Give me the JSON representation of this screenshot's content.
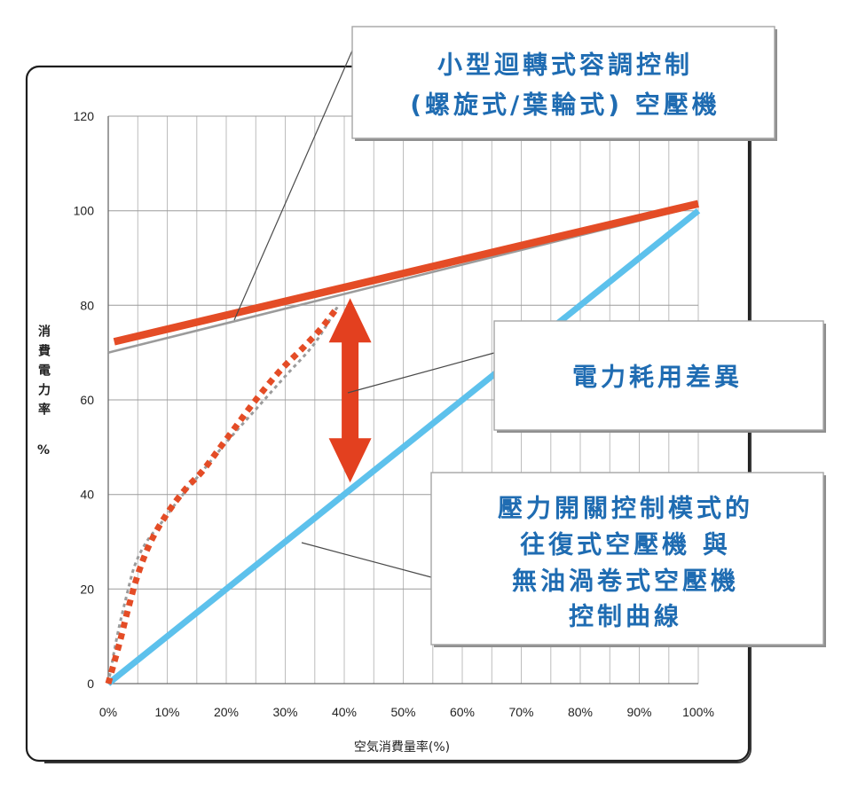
{
  "chart_data": {
    "type": "line",
    "xlabel": "空気消費量率(%)",
    "ylabel": "消費電力率 %",
    "xlim": [
      0,
      100
    ],
    "ylim": [
      0,
      120
    ],
    "xticks": [
      0,
      10,
      20,
      30,
      40,
      50,
      60,
      70,
      80,
      90,
      100
    ],
    "xtick_labels": [
      "0%",
      "10%",
      "20%",
      "30%",
      "40%",
      "50%",
      "60%",
      "70%",
      "80%",
      "90%",
      "100%"
    ],
    "yticks": [
      0,
      20,
      40,
      60,
      80,
      100,
      120
    ],
    "grid": true,
    "series": [
      {
        "dashed": false,
        "color": "#9b9b9b",
        "x": [
          0,
          100
        ],
        "y": [
          70,
          101
        ]
      },
      {
        "dashed": false,
        "color": "#e44c26",
        "x": [
          1,
          100
        ],
        "y": [
          72.3,
          101.5
        ]
      },
      {
        "dashed": false,
        "color": "#5dc1ec",
        "x": [
          0,
          100
        ],
        "y": [
          0,
          100
        ]
      },
      {
        "dashed": true,
        "color": "#9b9b9b",
        "x": [
          0,
          1.5,
          3,
          4.5,
          6.5,
          9,
          12,
          16,
          20,
          25,
          30,
          35,
          39
        ],
        "y": [
          0,
          10,
          18,
          25,
          30,
          34,
          39,
          45,
          51,
          58,
          65,
          72,
          80
        ]
      },
      {
        "dashed": true,
        "color": "#e44c26",
        "x": [
          0,
          2,
          3.2,
          5,
          7.2,
          10,
          13,
          16,
          19,
          22,
          25,
          29,
          33,
          36,
          38.5
        ],
        "y": [
          0,
          9,
          15,
          23,
          30,
          36,
          41,
          45,
          50,
          55,
          60,
          66,
          71,
          75,
          79
        ]
      }
    ],
    "difference_arrow": {
      "x": 41,
      "y_from": 42.5,
      "y_to": 81.5,
      "color": "#e3401f"
    },
    "annotation_color": "#1f6cb2",
    "annotations": [
      {
        "lines": [
          "小型迴轉式容調控制",
          "(螺旋式/葉輪式) 空壓機"
        ]
      },
      {
        "lines": [
          "電力耗用差異"
        ]
      },
      {
        "lines": [
          "壓力開關控制模式的",
          "往復式空壓機 與",
          "無油渦卷式空壓機",
          "控制曲線"
        ]
      }
    ]
  }
}
